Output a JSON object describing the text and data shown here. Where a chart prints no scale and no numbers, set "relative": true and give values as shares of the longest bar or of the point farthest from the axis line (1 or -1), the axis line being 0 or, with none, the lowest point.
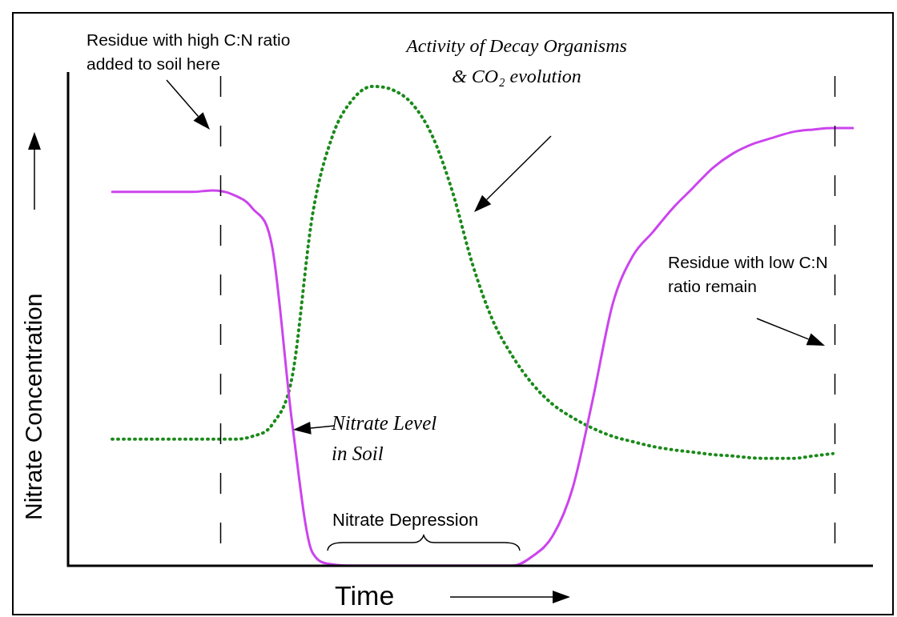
{
  "chart_data": {
    "type": "line",
    "relative": true,
    "xlabel": "Time",
    "ylabel": "Nitrate Concentration",
    "legend": false,
    "marker": "none",
    "tick_labels": false,
    "categories": [
      null,
      null,
      null,
      null,
      null,
      null,
      null,
      null,
      null,
      null,
      null,
      null,
      null,
      null,
      null,
      null,
      null,
      null,
      null,
      null,
      null,
      null,
      null,
      null,
      null,
      null,
      null,
      null,
      null,
      null,
      null,
      null,
      null,
      null,
      null,
      null,
      null,
      null
    ],
    "series": [
      {
        "color": "#cc44ee",
        "line_style": "solid",
        "values": [
          0.78,
          0.78,
          0.78,
          0.78,
          0.78,
          0.783,
          0.775,
          0.746,
          0.664,
          0.295,
          0.028,
          0.003,
          0,
          0,
          0,
          0,
          0,
          0,
          0,
          0,
          0,
          0.02,
          0.062,
          0.162,
          0.346,
          0.546,
          0.646,
          0.696,
          0.746,
          0.788,
          0.83,
          0.86,
          0.88,
          0.893,
          0.905,
          0.91,
          0.913,
          0.913
        ]
      },
      {
        "color": "#1a8a1a",
        "line_style": "dotted",
        "values": [
          0.264,
          0.264,
          0.264,
          0.264,
          0.264,
          0.264,
          0.264,
          0.27,
          0.295,
          0.396,
          0.73,
          0.896,
          0.972,
          1,
          0.993,
          0.963,
          0.896,
          0.78,
          0.629,
          0.513,
          0.437,
          0.379,
          0.337,
          0.309,
          0.287,
          0.27,
          0.259,
          0.249,
          0.242,
          0.237,
          0.232,
          0.229,
          0.225,
          0.224,
          0.224,
          0.229,
          0.234,
          null
        ]
      }
    ],
    "annotations": [
      "Residue with high C:N ratio added to soil here",
      "Activity of Decay Organisms & CO₂ evolution",
      "Nitrate Level in Soil",
      "Nitrate Depression",
      "Residue with low C:N ratio remain"
    ]
  }
}
